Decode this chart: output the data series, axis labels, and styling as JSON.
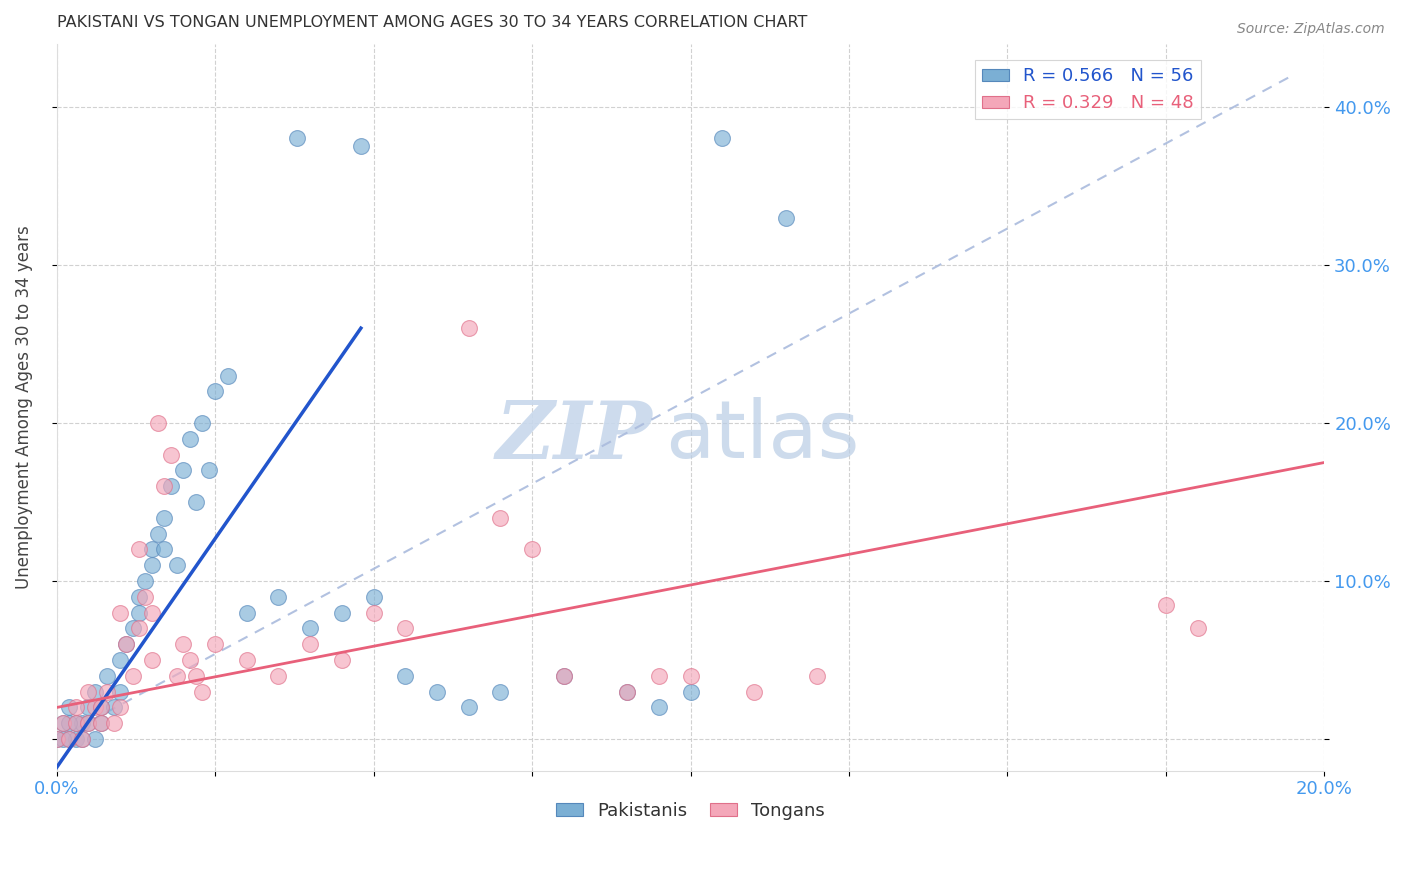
{
  "title": "PAKISTANI VS TONGAN UNEMPLOYMENT AMONG AGES 30 TO 34 YEARS CORRELATION CHART",
  "source": "Source: ZipAtlas.com",
  "ylabel": "Unemployment Among Ages 30 to 34 years",
  "xlim": [
    0.0,
    0.2
  ],
  "ylim": [
    -0.02,
    0.44
  ],
  "color_pakistani": "#7bafd4",
  "color_tongan": "#f4a7b9",
  "color_edge_pakistani": "#5588bb",
  "color_edge_tongan": "#e0708a",
  "color_trendline_pakistani": "#2255cc",
  "color_trendline_tongan": "#e8607a",
  "watermark_zip": "ZIP",
  "watermark_atlas": "atlas",
  "pak_points": [
    [
      0.0,
      0.0
    ],
    [
      0.001,
      0.01
    ],
    [
      0.002,
      0.0
    ],
    [
      0.002,
      0.02
    ],
    [
      0.003,
      0.0
    ],
    [
      0.003,
      0.01
    ],
    [
      0.004,
      0.01
    ],
    [
      0.004,
      0.0
    ],
    [
      0.005,
      0.02
    ],
    [
      0.005,
      0.01
    ],
    [
      0.006,
      0.03
    ],
    [
      0.006,
      0.0
    ],
    [
      0.007,
      0.02
    ],
    [
      0.007,
      0.01
    ],
    [
      0.008,
      0.04
    ],
    [
      0.009,
      0.02
    ],
    [
      0.01,
      0.05
    ],
    [
      0.01,
      0.03
    ],
    [
      0.011,
      0.06
    ],
    [
      0.012,
      0.07
    ],
    [
      0.013,
      0.09
    ],
    [
      0.013,
      0.08
    ],
    [
      0.014,
      0.1
    ],
    [
      0.015,
      0.12
    ],
    [
      0.015,
      0.11
    ],
    [
      0.016,
      0.13
    ],
    [
      0.017,
      0.14
    ],
    [
      0.017,
      0.12
    ],
    [
      0.018,
      0.16
    ],
    [
      0.019,
      0.11
    ],
    [
      0.02,
      0.17
    ],
    [
      0.021,
      0.19
    ],
    [
      0.022,
      0.15
    ],
    [
      0.023,
      0.2
    ],
    [
      0.024,
      0.17
    ],
    [
      0.025,
      0.22
    ],
    [
      0.027,
      0.23
    ],
    [
      0.03,
      0.08
    ],
    [
      0.038,
      0.38
    ],
    [
      0.048,
      0.375
    ],
    [
      0.035,
      0.09
    ],
    [
      0.04,
      0.07
    ],
    [
      0.045,
      0.08
    ],
    [
      0.05,
      0.09
    ],
    [
      0.055,
      0.04
    ],
    [
      0.06,
      0.03
    ],
    [
      0.065,
      0.02
    ],
    [
      0.07,
      0.03
    ],
    [
      0.08,
      0.04
    ],
    [
      0.09,
      0.03
    ],
    [
      0.095,
      0.02
    ],
    [
      0.1,
      0.03
    ],
    [
      0.105,
      0.38
    ],
    [
      0.115,
      0.33
    ],
    [
      0.001,
      0.0
    ],
    [
      0.002,
      0.01
    ]
  ],
  "ton_points": [
    [
      0.0,
      0.0
    ],
    [
      0.001,
      0.01
    ],
    [
      0.002,
      0.0
    ],
    [
      0.003,
      0.01
    ],
    [
      0.003,
      0.02
    ],
    [
      0.004,
      0.0
    ],
    [
      0.005,
      0.01
    ],
    [
      0.005,
      0.03
    ],
    [
      0.006,
      0.02
    ],
    [
      0.007,
      0.01
    ],
    [
      0.007,
      0.02
    ],
    [
      0.008,
      0.03
    ],
    [
      0.009,
      0.01
    ],
    [
      0.01,
      0.02
    ],
    [
      0.01,
      0.08
    ],
    [
      0.011,
      0.06
    ],
    [
      0.012,
      0.04
    ],
    [
      0.013,
      0.07
    ],
    [
      0.013,
      0.12
    ],
    [
      0.014,
      0.09
    ],
    [
      0.015,
      0.05
    ],
    [
      0.015,
      0.08
    ],
    [
      0.016,
      0.2
    ],
    [
      0.017,
      0.16
    ],
    [
      0.018,
      0.18
    ],
    [
      0.019,
      0.04
    ],
    [
      0.02,
      0.06
    ],
    [
      0.021,
      0.05
    ],
    [
      0.022,
      0.04
    ],
    [
      0.023,
      0.03
    ],
    [
      0.025,
      0.06
    ],
    [
      0.03,
      0.05
    ],
    [
      0.035,
      0.04
    ],
    [
      0.04,
      0.06
    ],
    [
      0.045,
      0.05
    ],
    [
      0.05,
      0.08
    ],
    [
      0.055,
      0.07
    ],
    [
      0.065,
      0.26
    ],
    [
      0.07,
      0.14
    ],
    [
      0.075,
      0.12
    ],
    [
      0.08,
      0.04
    ],
    [
      0.09,
      0.03
    ],
    [
      0.095,
      0.04
    ],
    [
      0.1,
      0.04
    ],
    [
      0.11,
      0.03
    ],
    [
      0.12,
      0.04
    ],
    [
      0.175,
      0.085
    ],
    [
      0.18,
      0.07
    ]
  ],
  "blue_line": [
    [
      0.0,
      -0.018
    ],
    [
      0.048,
      0.26
    ]
  ],
  "pink_line": [
    [
      0.0,
      0.02
    ],
    [
      0.2,
      0.175
    ]
  ],
  "diag_line": [
    [
      0.0,
      0.0
    ],
    [
      0.195,
      0.42
    ]
  ]
}
